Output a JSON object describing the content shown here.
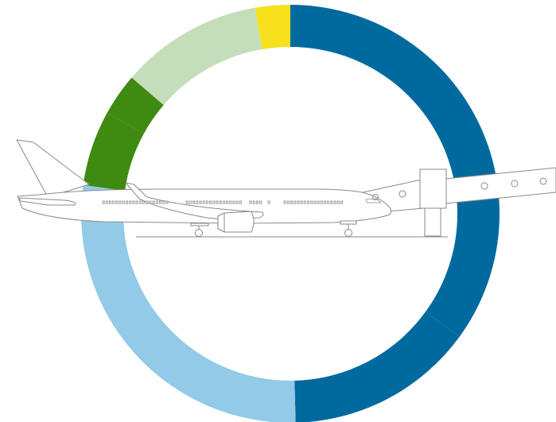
{
  "chart_data": {
    "type": "pie",
    "variant": "donut",
    "title": "",
    "start_angle_deg": 0,
    "direction": "clockwise",
    "segments": [
      {
        "label": "",
        "value": 35.0,
        "color": "#006a9e"
      },
      {
        "label": "",
        "value": 14.6,
        "color": "#006a9e"
      },
      {
        "label": "",
        "value": 27.6,
        "color": "#92cae7"
      },
      {
        "label": "",
        "value": 5.8,
        "color": "#3f8a10"
      },
      {
        "label": "",
        "value": 3.3,
        "color": "#3f8a10"
      },
      {
        "label": "",
        "value": 11.0,
        "color": "#c5deba"
      },
      {
        "label": "",
        "value": 2.7,
        "color": "#f7e01c"
      }
    ],
    "legend": "none",
    "center_illustration": "aircraft-at-gate"
  }
}
